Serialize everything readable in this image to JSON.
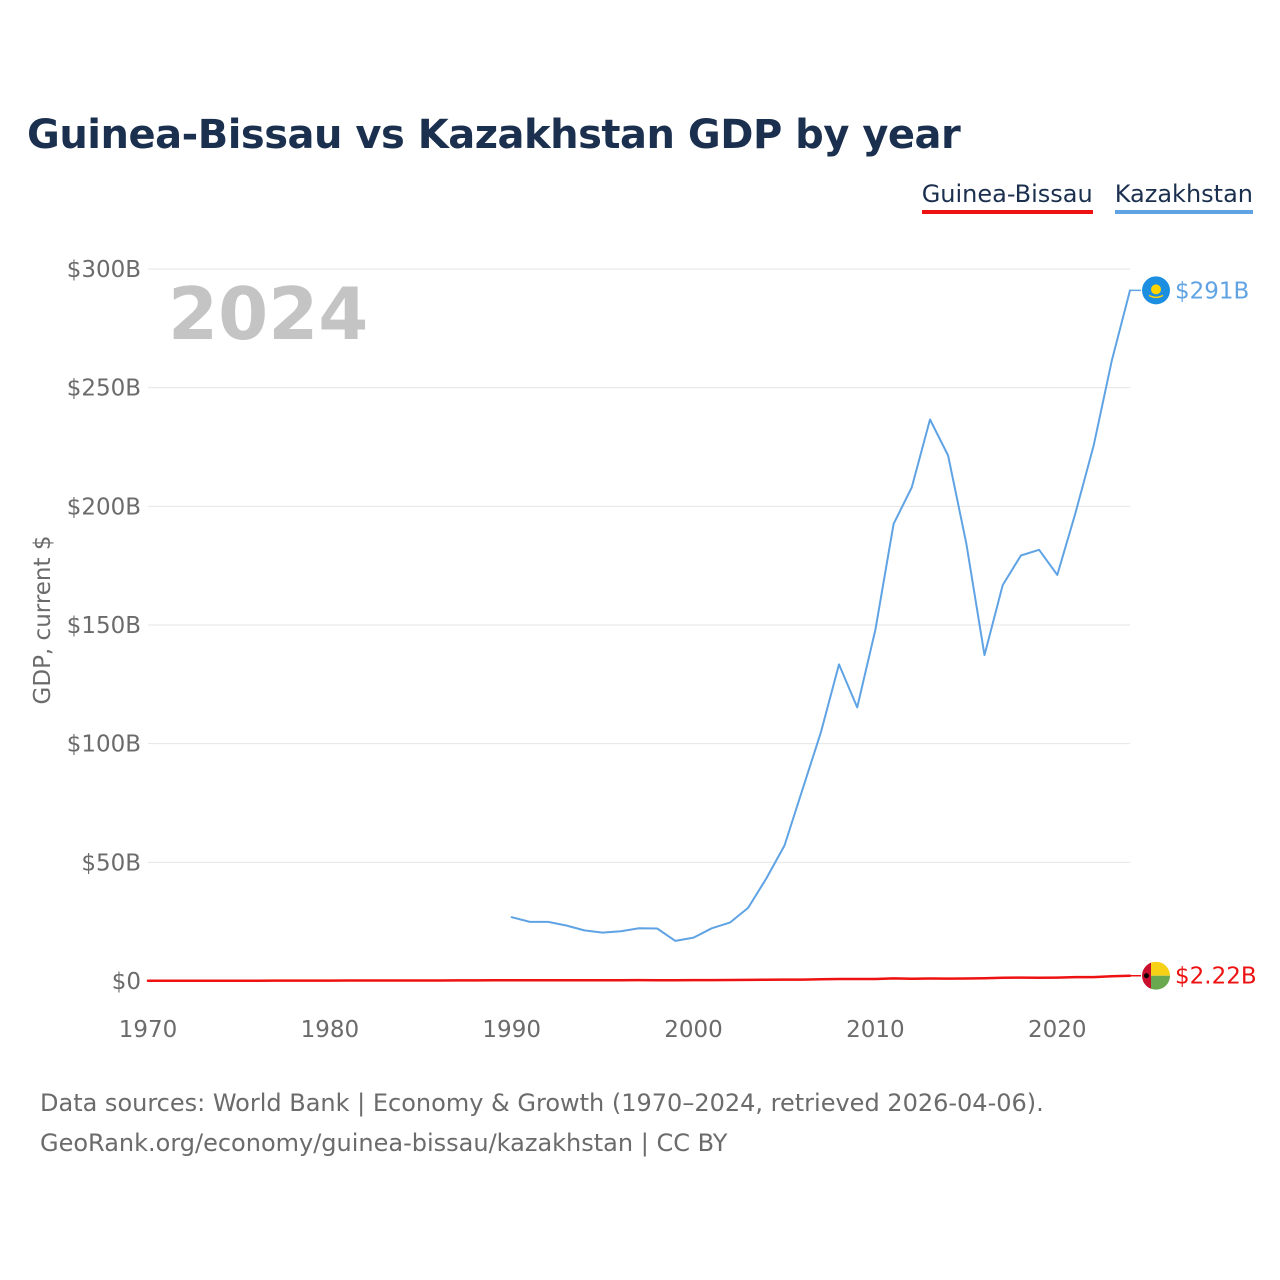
{
  "header": {
    "title": "Guinea-Bissau vs Kazakhstan GDP by year"
  },
  "legend": {
    "items": [
      "Guinea-Bissau",
      "Kazakhstan"
    ]
  },
  "colors": {
    "guinea_bissau": "#ee1111",
    "kazakhstan": "#5fa3e4",
    "title": "#1b2f4e",
    "axis_text": "#6b6b6b",
    "year_watermark": "#c4c4c4",
    "grid": "#e6e6e6"
  },
  "icons": {
    "kazakhstan": "kazakhstan-flag-icon",
    "guinea_bissau": "guinea-bissau-flag-icon"
  },
  "chart_data": {
    "type": "line",
    "title": "Guinea-Bissau vs Kazakhstan GDP by year",
    "year_label": "2024",
    "xlabel": "",
    "ylabel": "GDP, current $",
    "xlim": [
      1970,
      2024
    ],
    "ylim": [
      0,
      300
    ],
    "y_unit": "billions USD",
    "x_ticks": [
      1970,
      1980,
      1990,
      2000,
      2010,
      2020
    ],
    "y_ticks": [
      {
        "value": 0,
        "label": "$0"
      },
      {
        "value": 50,
        "label": "$50B"
      },
      {
        "value": 100,
        "label": "$100B"
      },
      {
        "value": 150,
        "label": "$150B"
      },
      {
        "value": 200,
        "label": "$200B"
      },
      {
        "value": 250,
        "label": "$250B"
      },
      {
        "value": 300,
        "label": "$300B"
      }
    ],
    "grid": true,
    "series": [
      {
        "name": "Guinea-Bissau",
        "color": "#ee1111",
        "end_label": "$2.22B",
        "x": [
          1970,
          1971,
          1972,
          1973,
          1974,
          1975,
          1976,
          1977,
          1978,
          1979,
          1980,
          1981,
          1982,
          1983,
          1984,
          1985,
          1986,
          1987,
          1988,
          1989,
          1990,
          1991,
          1992,
          1993,
          1994,
          1995,
          1996,
          1997,
          1998,
          1999,
          2000,
          2001,
          2002,
          2003,
          2004,
          2005,
          2006,
          2007,
          2008,
          2009,
          2010,
          2011,
          2012,
          2013,
          2014,
          2015,
          2016,
          2017,
          2018,
          2019,
          2020,
          2021,
          2022,
          2023,
          2024
        ],
        "values": [
          0.08,
          0.08,
          0.09,
          0.1,
          0.11,
          0.12,
          0.14,
          0.15,
          0.16,
          0.17,
          0.18,
          0.19,
          0.2,
          0.2,
          0.2,
          0.21,
          0.21,
          0.24,
          0.26,
          0.28,
          0.3,
          0.31,
          0.32,
          0.32,
          0.33,
          0.34,
          0.35,
          0.36,
          0.31,
          0.33,
          0.37,
          0.39,
          0.42,
          0.47,
          0.53,
          0.59,
          0.6,
          0.7,
          0.86,
          0.84,
          0.85,
          1.1,
          0.99,
          1.04,
          1.02,
          1.05,
          1.19,
          1.35,
          1.45,
          1.34,
          1.43,
          1.63,
          1.64,
          1.98,
          2.22
        ]
      },
      {
        "name": "Kazakhstan",
        "color": "#5fa3e4",
        "end_label": "$291B",
        "x": [
          1990,
          1991,
          1992,
          1993,
          1994,
          1995,
          1996,
          1997,
          1998,
          1999,
          2000,
          2001,
          2002,
          2003,
          2004,
          2005,
          2006,
          2007,
          2008,
          2009,
          2010,
          2011,
          2012,
          2013,
          2014,
          2015,
          2016,
          2017,
          2018,
          2019,
          2020,
          2021,
          2022,
          2023,
          2024
        ],
        "values": [
          26.9,
          24.9,
          24.9,
          23.4,
          21.3,
          20.4,
          21.0,
          22.2,
          22.1,
          16.9,
          18.3,
          22.2,
          24.6,
          30.8,
          43.2,
          57.1,
          81.0,
          104.8,
          133.4,
          115.3,
          148.0,
          192.6,
          208.0,
          236.6,
          221.4,
          184.4,
          137.3,
          166.8,
          179.3,
          181.7,
          171.1,
          197.1,
          225.5,
          261.4,
          291.0
        ]
      }
    ]
  },
  "footer": {
    "source_line": "Data sources: World Bank | Economy & Growth (1970–2024, retrieved 2026-04-06).",
    "credit_line": "GeoRank.org/economy/guinea-bissau/kazakhstan | CC BY"
  }
}
